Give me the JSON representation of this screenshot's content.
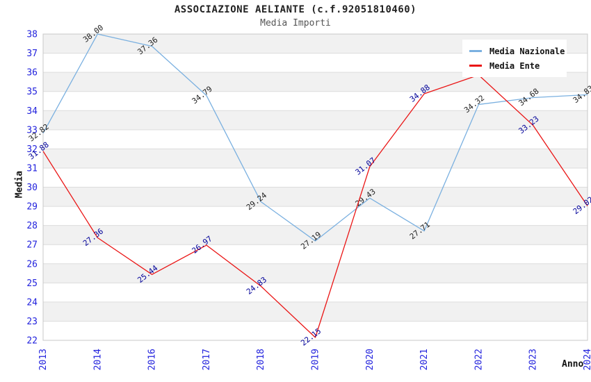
{
  "window": {
    "background": "#ffffff"
  },
  "chart_data": {
    "type": "line",
    "title": "ASSOCIAZIONE AELIANTE (c.f.92051810460)",
    "subtitle": "Media Importi",
    "xlabel": "Anno",
    "ylabel": "Media",
    "categories": [
      "2013",
      "2014",
      "2016",
      "2017",
      "2018",
      "2019",
      "2020",
      "2021",
      "2022",
      "2023",
      "2024"
    ],
    "ylim": [
      22,
      38
    ],
    "ytick_step": 1,
    "yticks": [
      22,
      23,
      24,
      25,
      26,
      27,
      28,
      29,
      30,
      31,
      32,
      33,
      34,
      35,
      36,
      37,
      38
    ],
    "grid": "horizontal gridlines with alternating gray/white one-unit bands",
    "legend_position": "top-right-inset",
    "tick_label_color": "#2222dd",
    "band_color": "#f1f1f1",
    "gridline_color": "#dcdcdc",
    "plot_border_color": "#c8c8c8",
    "series": [
      {
        "name": "Media Nazionale",
        "color": "#7ab0e0",
        "label_color": "#222222",
        "values": [
          32.82,
          38.0,
          37.36,
          34.79,
          29.24,
          27.19,
          29.43,
          27.71,
          34.32,
          34.68,
          34.83
        ],
        "labels": [
          "32.82",
          "38.00",
          "37.36",
          "34.79",
          "29.24",
          "27.19",
          "29.43",
          "27.71",
          "34.32",
          "34.68",
          "34.83"
        ]
      },
      {
        "name": "Media Ente",
        "color": "#ea1515",
        "label_color": "#000099",
        "values": [
          31.88,
          27.36,
          25.44,
          26.97,
          24.83,
          22.15,
          31.07,
          34.88,
          35.86,
          33.23,
          29.02
        ],
        "labels": [
          "31.88",
          "27.36",
          "25.44",
          "26.97",
          "24.83",
          "22.15",
          "31.07",
          "34.88",
          "",
          "33.23",
          "29.02"
        ]
      }
    ]
  }
}
